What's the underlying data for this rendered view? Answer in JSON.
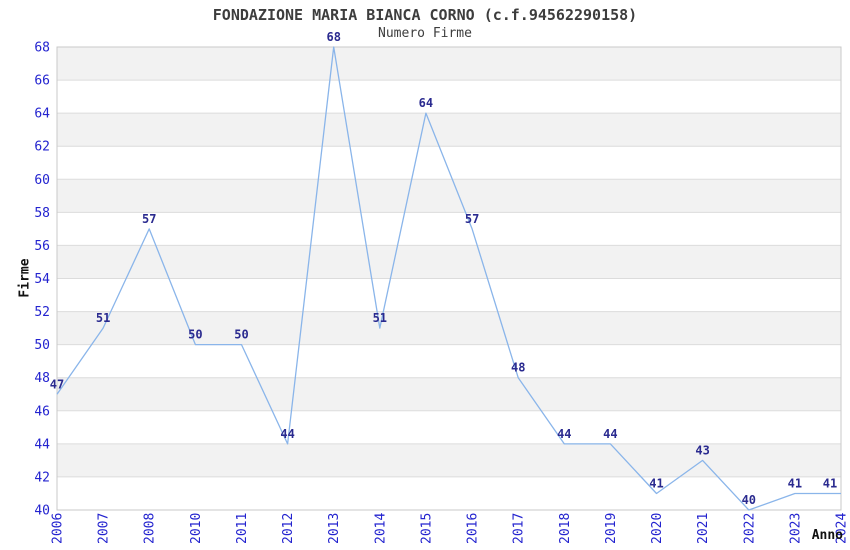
{
  "chart_data": {
    "type": "line",
    "title": "FONDAZIONE MARIA BIANCA CORNO (c.f.94562290158)",
    "subtitle": "Numero Firme",
    "xlabel": "Anno",
    "ylabel": "Firme",
    "categories": [
      "2006",
      "2007",
      "2008",
      "2010",
      "2011",
      "2012",
      "2013",
      "2014",
      "2015",
      "2016",
      "2017",
      "2018",
      "2019",
      "2020",
      "2021",
      "2022",
      "2023",
      "2024"
    ],
    "values": [
      47,
      51,
      57,
      50,
      50,
      44,
      68,
      51,
      64,
      57,
      48,
      44,
      44,
      41,
      43,
      40,
      41,
      41
    ],
    "ylim": [
      40,
      68
    ],
    "ytick_step": 2,
    "grid": "horizontal-bands",
    "legend": "none",
    "point_labels_visible": true,
    "colors": {
      "line": "#8ab5ea",
      "tick_label": "#2323cf",
      "point_label": "#2a2a8f",
      "band_gray": "#f2f2f2",
      "band_white": "#ffffff",
      "gridline": "#dcdcdc",
      "plot_border": "#c9c9c9",
      "title_text": "#3d3d3d",
      "axis_title_text": "#111111",
      "background": "#ffffff"
    }
  }
}
